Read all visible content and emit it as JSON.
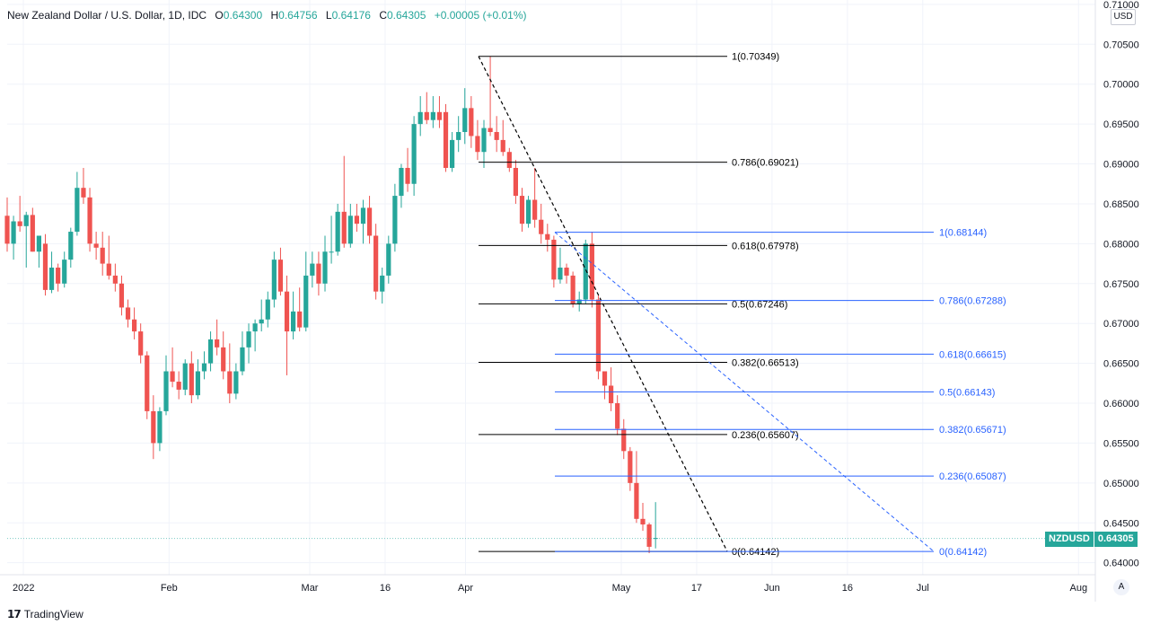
{
  "header": {
    "title": "New Zealand Dollar / U.S. Dollar, 1D, IDC",
    "open_label": "O",
    "open": "0.64300",
    "high_label": "H",
    "high": "0.64756",
    "low_label": "L",
    "low": "0.64176",
    "close_label": "C",
    "close": "0.64305",
    "change": "+0.00005 (+0.01%)"
  },
  "currency_button": "USD",
  "auto_button": "A",
  "branding": "TradingView",
  "symbol_badge": {
    "symbol": "NZDUSD",
    "price": "0.64305"
  },
  "colors": {
    "up": "#26a69a",
    "down": "#ef5350",
    "fib1": "#000000",
    "fib2": "#2962ff",
    "grid": "#f0f3fa"
  },
  "chart_data": {
    "type": "candlestick",
    "title": "New Zealand Dollar / U.S. Dollar, 1D, IDC",
    "ylim": [
      0.6385,
      0.7101
    ],
    "y_ticks": [
      "0.64000",
      "0.64500",
      "0.65000",
      "0.65500",
      "0.66000",
      "0.66500",
      "0.67000",
      "0.67500",
      "0.68000",
      "0.68500",
      "0.69000",
      "0.69500",
      "0.70000",
      "0.70500",
      "0.71000"
    ],
    "x_ticks": [
      {
        "label": "2022",
        "date": "2022-01-03"
      },
      {
        "label": "Feb",
        "date": "2022-02-01"
      },
      {
        "label": "Mar",
        "date": "2022-03-01"
      },
      {
        "label": "16",
        "date": "2022-03-16"
      },
      {
        "label": "Apr",
        "date": "2022-04-01"
      },
      {
        "label": "May",
        "date": "2022-05-02"
      },
      {
        "label": "17",
        "date": "2022-05-17"
      },
      {
        "label": "Jun",
        "date": "2022-06-01"
      },
      {
        "label": "16",
        "date": "2022-06-16"
      },
      {
        "label": "Jul",
        "date": "2022-07-01"
      },
      {
        "label": "Aug",
        "date": "2022-08-01"
      }
    ],
    "candles": [
      {
        "o": 0.6835,
        "h": 0.6858,
        "l": 0.679,
        "c": 0.68
      },
      {
        "o": 0.68,
        "h": 0.6835,
        "l": 0.678,
        "c": 0.6828
      },
      {
        "o": 0.6828,
        "h": 0.686,
        "l": 0.6815,
        "c": 0.6822
      },
      {
        "o": 0.6822,
        "h": 0.684,
        "l": 0.677,
        "c": 0.6836
      },
      {
        "o": 0.6836,
        "h": 0.6845,
        "l": 0.679,
        "c": 0.679
      },
      {
        "o": 0.679,
        "h": 0.681,
        "l": 0.677,
        "c": 0.681
      },
      {
        "o": 0.68,
        "h": 0.6812,
        "l": 0.6735,
        "c": 0.6742
      },
      {
        "o": 0.6742,
        "h": 0.679,
        "l": 0.6738,
        "c": 0.677
      },
      {
        "o": 0.677,
        "h": 0.6775,
        "l": 0.674,
        "c": 0.675
      },
      {
        "o": 0.675,
        "h": 0.679,
        "l": 0.6745,
        "c": 0.678
      },
      {
        "o": 0.678,
        "h": 0.682,
        "l": 0.677,
        "c": 0.6815
      },
      {
        "o": 0.6815,
        "h": 0.689,
        "l": 0.681,
        "c": 0.687
      },
      {
        "o": 0.687,
        "h": 0.6895,
        "l": 0.685,
        "c": 0.6858
      },
      {
        "o": 0.6858,
        "h": 0.687,
        "l": 0.679,
        "c": 0.68
      },
      {
        "o": 0.68,
        "h": 0.6815,
        "l": 0.678,
        "c": 0.6795
      },
      {
        "o": 0.6795,
        "h": 0.6815,
        "l": 0.676,
        "c": 0.6775
      },
      {
        "o": 0.6775,
        "h": 0.681,
        "l": 0.6755,
        "c": 0.676
      },
      {
        "o": 0.676,
        "h": 0.6775,
        "l": 0.674,
        "c": 0.675
      },
      {
        "o": 0.675,
        "h": 0.676,
        "l": 0.671,
        "c": 0.672
      },
      {
        "o": 0.672,
        "h": 0.673,
        "l": 0.6695,
        "c": 0.6705
      },
      {
        "o": 0.6705,
        "h": 0.672,
        "l": 0.668,
        "c": 0.669
      },
      {
        "o": 0.669,
        "h": 0.67,
        "l": 0.665,
        "c": 0.666
      },
      {
        "o": 0.666,
        "h": 0.6665,
        "l": 0.658,
        "c": 0.659
      },
      {
        "o": 0.659,
        "h": 0.661,
        "l": 0.653,
        "c": 0.655
      },
      {
        "o": 0.655,
        "h": 0.6595,
        "l": 0.654,
        "c": 0.659
      },
      {
        "o": 0.659,
        "h": 0.666,
        "l": 0.6585,
        "c": 0.664
      },
      {
        "o": 0.664,
        "h": 0.667,
        "l": 0.662,
        "c": 0.6627
      },
      {
        "o": 0.6627,
        "h": 0.664,
        "l": 0.6605,
        "c": 0.6617
      },
      {
        "o": 0.6617,
        "h": 0.6655,
        "l": 0.661,
        "c": 0.665
      },
      {
        "o": 0.665,
        "h": 0.6665,
        "l": 0.66,
        "c": 0.661
      },
      {
        "o": 0.661,
        "h": 0.6655,
        "l": 0.6605,
        "c": 0.664
      },
      {
        "o": 0.664,
        "h": 0.6665,
        "l": 0.663,
        "c": 0.665
      },
      {
        "o": 0.665,
        "h": 0.669,
        "l": 0.664,
        "c": 0.668
      },
      {
        "o": 0.668,
        "h": 0.6705,
        "l": 0.666,
        "c": 0.667
      },
      {
        "o": 0.667,
        "h": 0.669,
        "l": 0.663,
        "c": 0.664
      },
      {
        "o": 0.664,
        "h": 0.6675,
        "l": 0.66,
        "c": 0.6612
      },
      {
        "o": 0.6612,
        "h": 0.665,
        "l": 0.6605,
        "c": 0.664
      },
      {
        "o": 0.664,
        "h": 0.669,
        "l": 0.6635,
        "c": 0.667
      },
      {
        "o": 0.667,
        "h": 0.67,
        "l": 0.665,
        "c": 0.669
      },
      {
        "o": 0.669,
        "h": 0.6705,
        "l": 0.6665,
        "c": 0.67
      },
      {
        "o": 0.67,
        "h": 0.673,
        "l": 0.669,
        "c": 0.6705
      },
      {
        "o": 0.6705,
        "h": 0.674,
        "l": 0.6695,
        "c": 0.673
      },
      {
        "o": 0.673,
        "h": 0.679,
        "l": 0.672,
        "c": 0.678
      },
      {
        "o": 0.678,
        "h": 0.6795,
        "l": 0.6735,
        "c": 0.674
      },
      {
        "o": 0.674,
        "h": 0.676,
        "l": 0.6635,
        "c": 0.669
      },
      {
        "o": 0.669,
        "h": 0.674,
        "l": 0.668,
        "c": 0.6715
      },
      {
        "o": 0.6715,
        "h": 0.6745,
        "l": 0.669,
        "c": 0.6695
      },
      {
        "o": 0.6695,
        "h": 0.679,
        "l": 0.669,
        "c": 0.676
      },
      {
        "o": 0.676,
        "h": 0.679,
        "l": 0.6745,
        "c": 0.6775
      },
      {
        "o": 0.6775,
        "h": 0.679,
        "l": 0.6735,
        "c": 0.675
      },
      {
        "o": 0.675,
        "h": 0.681,
        "l": 0.674,
        "c": 0.679
      },
      {
        "o": 0.679,
        "h": 0.6835,
        "l": 0.6775,
        "c": 0.679
      },
      {
        "o": 0.679,
        "h": 0.685,
        "l": 0.6785,
        "c": 0.684
      },
      {
        "o": 0.684,
        "h": 0.691,
        "l": 0.6795,
        "c": 0.68
      },
      {
        "o": 0.68,
        "h": 0.685,
        "l": 0.6795,
        "c": 0.6835
      },
      {
        "o": 0.6835,
        "h": 0.685,
        "l": 0.6815,
        "c": 0.6825
      },
      {
        "o": 0.6825,
        "h": 0.6855,
        "l": 0.68,
        "c": 0.6845
      },
      {
        "o": 0.6845,
        "h": 0.686,
        "l": 0.68,
        "c": 0.681
      },
      {
        "o": 0.681,
        "h": 0.6825,
        "l": 0.673,
        "c": 0.674
      },
      {
        "o": 0.674,
        "h": 0.677,
        "l": 0.6725,
        "c": 0.676
      },
      {
        "o": 0.676,
        "h": 0.681,
        "l": 0.675,
        "c": 0.68
      },
      {
        "o": 0.68,
        "h": 0.6875,
        "l": 0.679,
        "c": 0.686
      },
      {
        "o": 0.686,
        "h": 0.69,
        "l": 0.6845,
        "c": 0.6895
      },
      {
        "o": 0.6895,
        "h": 0.692,
        "l": 0.6865,
        "c": 0.6875
      },
      {
        "o": 0.6875,
        "h": 0.696,
        "l": 0.686,
        "c": 0.695
      },
      {
        "o": 0.695,
        "h": 0.6985,
        "l": 0.6935,
        "c": 0.6965
      },
      {
        "o": 0.6965,
        "h": 0.699,
        "l": 0.695,
        "c": 0.6955
      },
      {
        "o": 0.6955,
        "h": 0.6985,
        "l": 0.6945,
        "c": 0.6965
      },
      {
        "o": 0.6965,
        "h": 0.6985,
        "l": 0.6945,
        "c": 0.6955
      },
      {
        "o": 0.6965,
        "h": 0.6975,
        "l": 0.689,
        "c": 0.6895
      },
      {
        "o": 0.6895,
        "h": 0.694,
        "l": 0.689,
        "c": 0.693
      },
      {
        "o": 0.693,
        "h": 0.696,
        "l": 0.6915,
        "c": 0.694
      },
      {
        "o": 0.694,
        "h": 0.6995,
        "l": 0.6925,
        "c": 0.697
      },
      {
        "o": 0.697,
        "h": 0.6985,
        "l": 0.692,
        "c": 0.6935
      },
      {
        "o": 0.6935,
        "h": 0.6955,
        "l": 0.6905,
        "c": 0.6915
      },
      {
        "o": 0.6915,
        "h": 0.6955,
        "l": 0.6895,
        "c": 0.6945
      },
      {
        "o": 0.6945,
        "h": 0.7035,
        "l": 0.6935,
        "c": 0.694
      },
      {
        "o": 0.694,
        "h": 0.696,
        "l": 0.6915,
        "c": 0.693
      },
      {
        "o": 0.693,
        "h": 0.6955,
        "l": 0.691,
        "c": 0.6915
      },
      {
        "o": 0.6915,
        "h": 0.692,
        "l": 0.689,
        "c": 0.6895
      },
      {
        "o": 0.6895,
        "h": 0.6905,
        "l": 0.685,
        "c": 0.686
      },
      {
        "o": 0.686,
        "h": 0.687,
        "l": 0.6815,
        "c": 0.6825
      },
      {
        "o": 0.6825,
        "h": 0.686,
        "l": 0.682,
        "c": 0.6855
      },
      {
        "o": 0.6855,
        "h": 0.6895,
        "l": 0.682,
        "c": 0.683
      },
      {
        "o": 0.683,
        "h": 0.685,
        "l": 0.68,
        "c": 0.6812
      },
      {
        "o": 0.6812,
        "h": 0.6825,
        "l": 0.679,
        "c": 0.6805
      },
      {
        "o": 0.6805,
        "h": 0.681,
        "l": 0.6745,
        "c": 0.6755
      },
      {
        "o": 0.6755,
        "h": 0.6795,
        "l": 0.675,
        "c": 0.677
      },
      {
        "o": 0.677,
        "h": 0.6775,
        "l": 0.675,
        "c": 0.676
      },
      {
        "o": 0.676,
        "h": 0.6765,
        "l": 0.672,
        "c": 0.6725
      },
      {
        "o": 0.6725,
        "h": 0.674,
        "l": 0.6715,
        "c": 0.673
      },
      {
        "o": 0.673,
        "h": 0.6805,
        "l": 0.6725,
        "c": 0.68
      },
      {
        "o": 0.68,
        "h": 0.6815,
        "l": 0.672,
        "c": 0.673
      },
      {
        "o": 0.673,
        "h": 0.6735,
        "l": 0.663,
        "c": 0.664
      },
      {
        "o": 0.664,
        "h": 0.664,
        "l": 0.6605,
        "c": 0.6622
      },
      {
        "o": 0.6622,
        "h": 0.6645,
        "l": 0.659,
        "c": 0.66
      },
      {
        "o": 0.66,
        "h": 0.661,
        "l": 0.656,
        "c": 0.6568
      },
      {
        "o": 0.6568,
        "h": 0.658,
        "l": 0.653,
        "c": 0.654
      },
      {
        "o": 0.654,
        "h": 0.6545,
        "l": 0.649,
        "c": 0.65
      },
      {
        "o": 0.65,
        "h": 0.654,
        "l": 0.645,
        "c": 0.6455
      },
      {
        "o": 0.6455,
        "h": 0.6475,
        "l": 0.644,
        "c": 0.6448
      },
      {
        "o": 0.6448,
        "h": 0.645,
        "l": 0.6412,
        "c": 0.642
      },
      {
        "o": 0.643,
        "h": 0.6476,
        "l": 0.6418,
        "c": 0.6431
      }
    ],
    "fib_retracement_1": {
      "color": "#000000",
      "levels": [
        {
          "label": "1(0.70349)",
          "value": 0.70349
        },
        {
          "label": "0.786(0.69021)",
          "value": 0.69021
        },
        {
          "label": "0.618(0.67978)",
          "value": 0.67978
        },
        {
          "label": "0.5(0.67246)",
          "value": 0.67246
        },
        {
          "label": "0.382(0.66513)",
          "value": 0.66513
        },
        {
          "label": "0.236(0.65607)",
          "value": 0.65607
        },
        {
          "label": "0(0.64142)",
          "value": 0.64142
        }
      ]
    },
    "fib_retracement_2": {
      "color": "#2962ff",
      "levels": [
        {
          "label": "1(0.68144)",
          "value": 0.68144
        },
        {
          "label": "0.786(0.67288)",
          "value": 0.67288
        },
        {
          "label": "0.618(0.66615)",
          "value": 0.66615
        },
        {
          "label": "0.5(0.66143)",
          "value": 0.66143
        },
        {
          "label": "0.382(0.65671)",
          "value": 0.65671
        },
        {
          "label": "0.236(0.65087)",
          "value": 0.65087
        },
        {
          "label": "0(0.64142)",
          "value": 0.64142
        }
      ]
    },
    "last_price": 0.64305
  }
}
